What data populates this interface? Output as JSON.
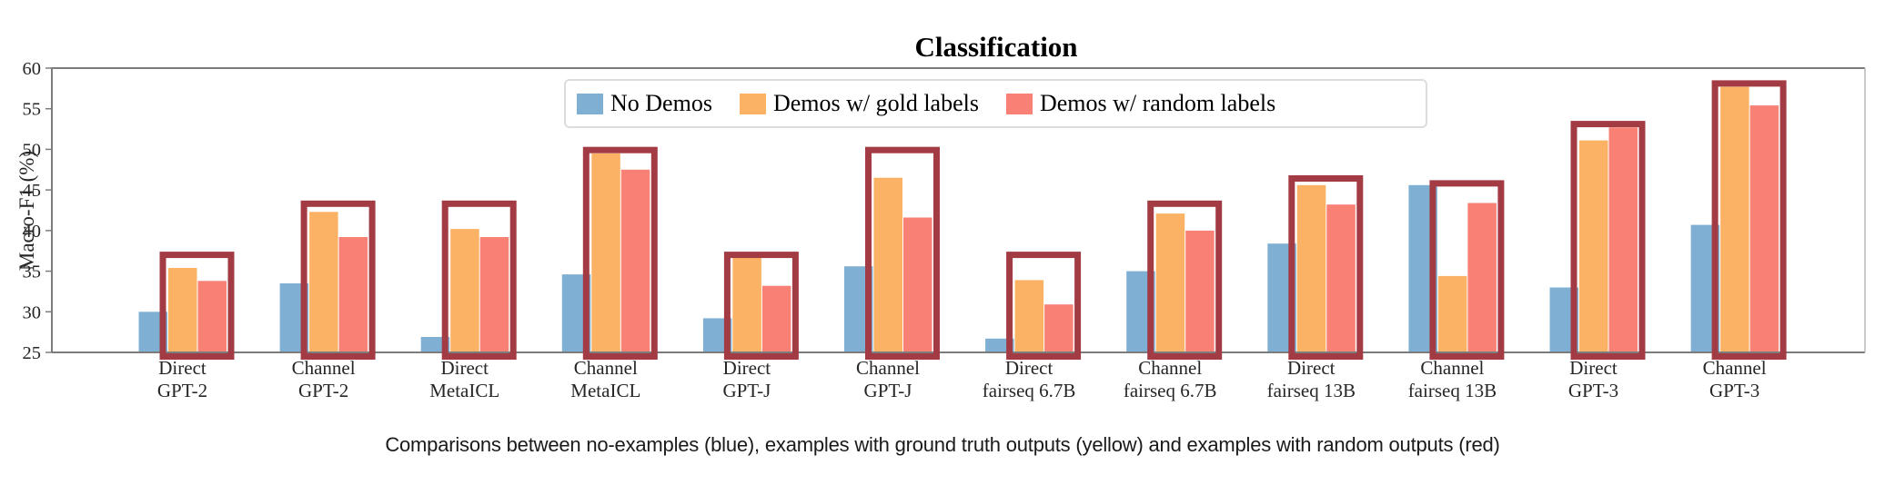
{
  "figure": {
    "caption": "Comparisons between no-examples (blue), examples with ground truth outputs (yellow) and examples with random outputs (red)"
  },
  "chart_data": {
    "type": "bar",
    "title": "Classification",
    "xlabel": "",
    "ylabel": "Macro-F1 (%)",
    "ylim": [
      25,
      60
    ],
    "yticks": [
      25,
      30,
      35,
      40,
      45,
      50,
      55,
      60
    ],
    "grid": false,
    "legend_position": "upper center inside plot",
    "categories": [
      [
        "Direct",
        "GPT-2"
      ],
      [
        "Channel",
        "GPT-2"
      ],
      [
        "Direct",
        "MetaICL"
      ],
      [
        "Channel",
        "MetaICL"
      ],
      [
        "Direct",
        "GPT-J"
      ],
      [
        "Channel",
        "GPT-J"
      ],
      [
        "Direct",
        "fairseq 6.7B"
      ],
      [
        "Channel",
        "fairseq 6.7B"
      ],
      [
        "Direct",
        "fairseq 13B"
      ],
      [
        "Channel",
        "fairseq 13B"
      ],
      [
        "Direct",
        "GPT-3"
      ],
      [
        "Channel",
        "GPT-3"
      ]
    ],
    "series": [
      {
        "name": "No Demos",
        "color": "#7fb0d4",
        "values": [
          30.0,
          33.5,
          26.9,
          34.6,
          29.2,
          35.6,
          26.7,
          35.0,
          38.4,
          45.6,
          33.0,
          40.7
        ]
      },
      {
        "name": "Demos w/ gold labels",
        "color": "#fbb264",
        "values": [
          35.4,
          42.3,
          40.2,
          49.5,
          36.7,
          46.5,
          33.9,
          42.1,
          45.6,
          34.4,
          51.1,
          57.7
        ]
      },
      {
        "name": "Demos w/ random labels",
        "color": "#f88074",
        "values": [
          33.8,
          39.2,
          39.2,
          47.5,
          33.2,
          41.6,
          30.9,
          40.0,
          43.2,
          43.4,
          52.7,
          55.4
        ]
      }
    ],
    "highlight_boxes": {
      "color": "#a23b43",
      "around_series": [
        "Demos w/ gold labels",
        "Demos w/ random labels"
      ],
      "tops": [
        37.4,
        43.7,
        43.7,
        50.3,
        37.4,
        50.3,
        37.4,
        43.7,
        46.8,
        46.2,
        53.5,
        58.5
      ]
    },
    "axis_color": "#7c7c7c",
    "right_spine_color": "#b8b8b8",
    "tick_label_color": "#262626"
  }
}
